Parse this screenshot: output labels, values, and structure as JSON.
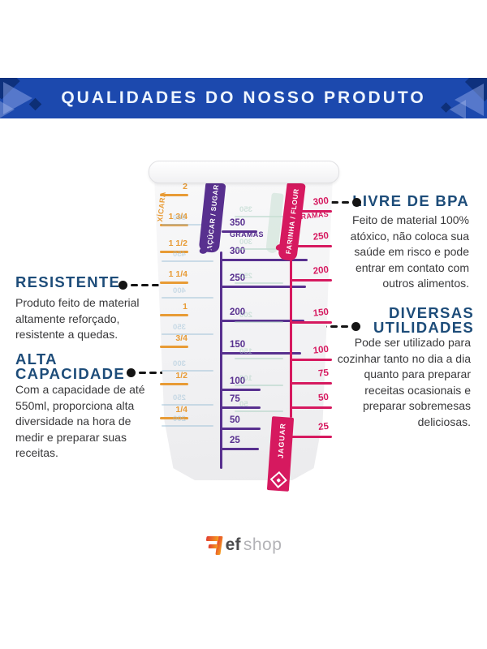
{
  "header": {
    "title": "QUALIDADES DO NOSSO PRODUTO"
  },
  "features": {
    "resistente": {
      "title": "RESISTENTE",
      "body": "Produto feito de material altamente reforçado, resistente a quedas."
    },
    "alta_capacidade": {
      "title": "ALTA CAPACIDADE",
      "body": "Com a capacidade de até 550ml, proporciona alta diversidade na hora de medir e preparar suas receitas."
    },
    "livre_de_bpa": {
      "title": "LIVRE DE BPA",
      "body": "Feito de material 100% atóxico, não coloca sua saúde em risco e pode entrar em contato com outros alimentos."
    },
    "diversas_utilidades": {
      "title": "DIVERSAS UTILIDADES",
      "body": "Pode ser utilizado para cozinhar tanto no dia a dia quanto para preparar receitas ocasionais e preparar sobremesas deliciosas."
    }
  },
  "cup": {
    "brand": "JAGUAR",
    "scales": {
      "cups": {
        "label": "XÍCARA",
        "top_value": "2",
        "values": [
          "1 3/4",
          "1 1/2",
          "1 1/4",
          "1",
          "3/4",
          "1/2",
          "1/4"
        ],
        "color": "#e89b35"
      },
      "sugar": {
        "ribbon": "AÇÚCAR / SUGAR",
        "max": "350",
        "unit": "GRAMAS",
        "values": [
          "300",
          "250",
          "200",
          "150",
          "100",
          "75",
          "50",
          "25"
        ],
        "color": "#58308f"
      },
      "flour": {
        "ribbon": "FARINHA / FLOUR",
        "max": "300",
        "unit": "GRAMAS",
        "values": [
          "250",
          "200",
          "150",
          "100",
          "75",
          "50",
          "25"
        ],
        "color": "#d6195f"
      },
      "ghost_back_left": {
        "values": [
          "500",
          "450",
          "400",
          "350",
          "300",
          "250",
          "200"
        ],
        "color": "#9fc2d8"
      },
      "ghost_back_mid": {
        "values": [
          "350",
          "300",
          "250",
          "200",
          "150",
          "100",
          "50"
        ],
        "color": "#a9cfc0"
      }
    }
  },
  "colors": {
    "banner": "#1c49ae",
    "banner_dark": "#0d2f78",
    "accent_navy": "#1d4c79",
    "text": "#39393b"
  },
  "logo": {
    "ef": "ef",
    "shop": "shop"
  }
}
